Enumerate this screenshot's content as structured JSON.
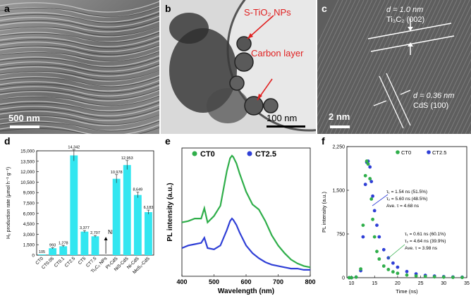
{
  "panels": {
    "a": {
      "label": "a",
      "scale_bar": "500 nm"
    },
    "b": {
      "label": "b",
      "annotations": [
        "S-TiO₂ NPs",
        "Carbon layer"
      ],
      "scale_bar": "100 nm"
    },
    "c": {
      "label": "c",
      "annotations": [
        "d = 1.0 nm",
        "Ti₃C₂ (002)",
        "d = 0.36 nm",
        "CdS (100)"
      ],
      "scale_bar": "2 nm"
    },
    "d": {
      "label": "d",
      "na_label": "NIL"
    },
    "e": {
      "label": "e"
    },
    "f": {
      "label": "f"
    }
  },
  "colors": {
    "cyan": "#33e6f0",
    "green": "#2fae4a",
    "blue": "#2f3fd6",
    "red": "#e02020"
  },
  "chart_data": [
    {
      "type": "bar",
      "categories": [
        "CT0",
        "CT0.05",
        "CT0.1",
        "CT2.5",
        "CT5",
        "CT7.5",
        "Ti₃C₂ NPs",
        "Pt-CdS",
        "NiS-CdS",
        "Ni-CdS",
        "MoS₂-CdS"
      ],
      "values": [
        105,
        993,
        1278,
        14342,
        3377,
        2707,
        0,
        10978,
        12953,
        8649,
        6183
      ],
      "data_labels": [
        "105",
        "993",
        "1,278",
        "14,342",
        "3,377",
        "2,707",
        "",
        "10,978",
        "12,953",
        "8,649",
        "6,183"
      ],
      "errors": [
        0,
        80,
        100,
        800,
        150,
        120,
        0,
        600,
        650,
        400,
        300
      ],
      "ylabel": "H₂ production rate (μmol h⁻¹ g⁻¹)",
      "yticks": [
        "0",
        "1,500",
        "3,000",
        "4,500",
        "6,000",
        "7,500",
        "9,000",
        "10,500",
        "12,000",
        "13,500",
        "15,000"
      ],
      "ylim": [
        0,
        15000
      ]
    },
    {
      "type": "line",
      "xlabel": "Wavelength (nm)",
      "ylabel": "PL intensity (a.u.)",
      "xticks": [
        "400",
        "500",
        "600",
        "700",
        "800"
      ],
      "xlim": [
        400,
        800
      ],
      "series": [
        {
          "name": "CT0",
          "x": [
            400,
            420,
            440,
            460,
            470,
            480,
            500,
            520,
            540,
            550,
            556,
            560,
            570,
            580,
            600,
            620,
            640,
            660,
            680,
            700,
            720,
            740,
            760,
            780,
            800
          ],
          "y": [
            0.42,
            0.43,
            0.45,
            0.45,
            0.53,
            0.42,
            0.47,
            0.55,
            0.82,
            0.92,
            0.94,
            0.93,
            0.88,
            0.8,
            0.66,
            0.56,
            0.52,
            0.43,
            0.32,
            0.24,
            0.18,
            0.13,
            0.1,
            0.08,
            0.07
          ]
        },
        {
          "name": "CT2.5",
          "x": [
            400,
            420,
            440,
            460,
            470,
            480,
            500,
            520,
            540,
            550,
            556,
            560,
            570,
            580,
            600,
            620,
            640,
            660,
            680,
            700,
            720,
            740,
            760,
            780,
            800
          ],
          "y": [
            0.22,
            0.24,
            0.25,
            0.26,
            0.3,
            0.22,
            0.21,
            0.24,
            0.36,
            0.43,
            0.45,
            0.44,
            0.4,
            0.34,
            0.24,
            0.18,
            0.14,
            0.11,
            0.09,
            0.08,
            0.07,
            0.06,
            0.06,
            0.05,
            0.05
          ]
        }
      ]
    },
    {
      "type": "scatter",
      "xlabel": "Time (ns)",
      "ylabel": "PL intensity (a.u.)",
      "xticks": [
        "10",
        "15",
        "20",
        "25",
        "30",
        "35"
      ],
      "yticks": [
        "0",
        "750",
        "1,500",
        "2,250"
      ],
      "xlim": [
        9,
        35
      ],
      "ylim": [
        0,
        2250
      ],
      "annotations": [
        "τ₁ = 1.54 ns (51.5%)",
        "τ₂ = 5.60 ns (48.5%)",
        "Ave. τ = 4.68 ns",
        "τ₁ = 0.61 ns (60.1%)",
        "τ₂ = 4.64 ns (39.9%)",
        "Ave. τ = 3.98 ns"
      ],
      "series": [
        {
          "name": "CT0",
          "x": [
            9.5,
            10,
            11,
            12,
            12.5,
            13,
            13.3,
            13.6,
            14,
            14.3,
            14.6,
            15,
            15.5,
            16,
            17,
            18,
            19,
            20,
            22,
            24,
            26,
            28,
            30,
            32,
            34
          ],
          "y": [
            0,
            0,
            10,
            150,
            900,
            1750,
            2000,
            1950,
            1700,
            1350,
            1000,
            700,
            450,
            320,
            200,
            140,
            100,
            75,
            45,
            30,
            20,
            14,
            10,
            6,
            4
          ]
        },
        {
          "name": "CT2.5",
          "x": [
            9.5,
            10,
            11,
            12,
            12.5,
            13,
            13.3,
            13.6,
            14,
            14.3,
            14.6,
            15,
            15.5,
            16,
            17,
            18,
            19,
            20,
            22,
            24,
            26,
            28,
            30,
            32,
            34
          ],
          "y": [
            0,
            0,
            10,
            120,
            700,
            1600,
            1980,
            2000,
            1900,
            1650,
            1400,
            1150,
            900,
            700,
            480,
            340,
            250,
            180,
            105,
            65,
            40,
            28,
            18,
            12,
            8
          ]
        }
      ]
    }
  ]
}
